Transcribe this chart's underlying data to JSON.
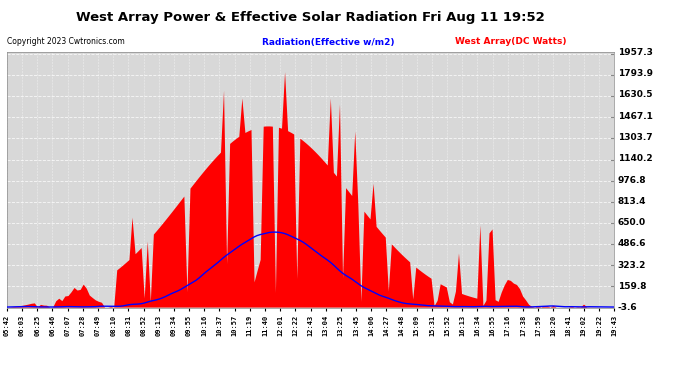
{
  "title": "West Array Power & Effective Solar Radiation Fri Aug 11 19:52",
  "copyright": "Copyright 2023 Cwtronics.com",
  "legend_radiation": "Radiation(Effective w/m2)",
  "legend_westarray": "West Array(DC Watts)",
  "ymin": -3.6,
  "ymax": 1957.3,
  "yticks": [
    1957.3,
    1793.9,
    1630.5,
    1467.1,
    1303.7,
    1140.2,
    976.8,
    813.4,
    650.0,
    486.6,
    323.2,
    159.8,
    -3.6
  ],
  "background_color": "#ffffff",
  "plot_bg_color": "#d8d8d8",
  "grid_color": "#aaaaaa",
  "title_color": "#000000",
  "radiation_color": "#0000ff",
  "power_color": "#ff0000",
  "tick_label_color": "#000000",
  "copyright_color": "#000000",
  "n_points": 200,
  "xtick_labels": [
    "05:42",
    "06:03",
    "06:25",
    "06:46",
    "07:07",
    "07:28",
    "07:49",
    "08:10",
    "08:31",
    "08:52",
    "09:13",
    "09:34",
    "09:55",
    "10:16",
    "10:37",
    "10:57",
    "11:19",
    "11:40",
    "12:01",
    "12:22",
    "12:43",
    "13:04",
    "13:25",
    "13:45",
    "14:06",
    "14:27",
    "14:48",
    "15:09",
    "15:31",
    "15:52",
    "16:13",
    "16:34",
    "16:55",
    "17:16",
    "17:38",
    "17:59",
    "18:20",
    "18:41",
    "19:02",
    "19:22",
    "19:43"
  ]
}
